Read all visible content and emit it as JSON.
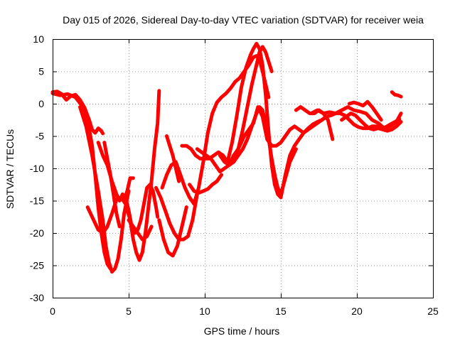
{
  "chart_data": {
    "type": "scatter",
    "title": "Day 015 of 2026, Sidereal Day-to-day VTEC variation (SDTVAR) for receiver weia",
    "xlabel": "GPS time / hours",
    "ylabel": "SDTVAR / TECUs",
    "xlim": [
      0,
      25
    ],
    "ylim": [
      -30,
      10
    ],
    "xticks": [
      0,
      5,
      10,
      15,
      20,
      25
    ],
    "yticks": [
      -30,
      -25,
      -20,
      -15,
      -10,
      -5,
      0,
      5,
      10
    ],
    "grid": true,
    "color": "#ff0000",
    "marker": "plus",
    "series": [
      {
        "x": [
          0.0,
          0.3,
          0.6,
          0.9,
          1.2,
          1.5,
          1.8,
          2.1,
          2.4,
          2.6,
          2.8,
          3.0,
          3.2,
          3.3
        ],
        "y": [
          1.8,
          1.9,
          1.5,
          0.6,
          1.2,
          1.4,
          0.6,
          -0.6,
          -2.5,
          -4.0,
          -4.5,
          -3.8,
          -4.2,
          -4.6
        ]
      },
      {
        "x": [
          0.0,
          0.5,
          1.0,
          1.5,
          2.0,
          2.3,
          2.6,
          2.8,
          3.0,
          3.2,
          3.4,
          3.6,
          3.8
        ],
        "y": [
          1.6,
          1.3,
          1.5,
          1.0,
          -0.5,
          -2.5,
          -6.5,
          -11.0,
          -16.0,
          -20.0,
          -23.0,
          -24.8,
          -25.5
        ]
      },
      {
        "x": [
          1.8,
          2.2,
          2.6,
          3.0,
          3.3,
          3.5,
          3.7,
          3.9,
          4.1,
          4.3,
          4.5,
          4.7,
          5.0
        ],
        "y": [
          -0.5,
          -3.5,
          -8.0,
          -13.5,
          -18.0,
          -22.0,
          -24.5,
          -26.0,
          -25.5,
          -24.0,
          -21.0,
          -17.0,
          -13.5
        ]
      },
      {
        "x": [
          2.3,
          2.6,
          3.0,
          3.3,
          3.6,
          3.9,
          4.2,
          4.5,
          4.8,
          5.1,
          5.3,
          5.5,
          5.7,
          5.9,
          6.1,
          6.3,
          6.5,
          6.7,
          6.9,
          7.0
        ],
        "y": [
          -16.0,
          -17.5,
          -19.5,
          -20.0,
          -19.0,
          -17.0,
          -14.8,
          -14.5,
          -15.5,
          -18.0,
          -21.0,
          -23.0,
          -24.2,
          -23.0,
          -20.0,
          -16.0,
          -12.0,
          -7.0,
          -3.0,
          2.0
        ]
      },
      {
        "x": [
          3.0,
          3.3,
          3.6,
          3.9,
          4.2,
          4.4,
          4.6,
          4.8,
          5.0,
          5.2,
          5.4,
          5.6,
          5.8,
          6.0,
          6.2,
          6.4,
          6.6,
          6.8,
          6.9
        ],
        "y": [
          -6.0,
          -8.0,
          -9.5,
          -12.0,
          -14.0,
          -15.0,
          -14.0,
          -14.5,
          -16.5,
          -19.0,
          -20.0,
          -19.5,
          -18.0,
          -15.5,
          -13.0,
          -12.5,
          -13.5,
          -16.0,
          -17.5
        ]
      },
      {
        "x": [
          3.4,
          3.6,
          3.8,
          4.0,
          4.2,
          4.4
        ],
        "y": [
          -6.0,
          -8.5,
          -11.0,
          -14.0,
          -17.0,
          -19.0
        ]
      },
      {
        "x": [
          4.5,
          4.7,
          4.9,
          5.1,
          5.3
        ],
        "y": [
          -14.5,
          -15.0,
          -13.5,
          -11.5,
          -11.5
        ]
      },
      {
        "x": [
          5.0,
          5.3,
          5.6,
          5.9,
          6.2,
          6.5
        ],
        "y": [
          -18.0,
          -19.0,
          -20.0,
          -21.0,
          -20.5,
          -19.0
        ]
      },
      {
        "x": [
          6.8,
          7.1,
          7.4,
          7.7,
          8.0,
          8.3,
          8.6,
          8.9,
          9.2,
          9.5
        ],
        "y": [
          -13.0,
          -14.5,
          -16.5,
          -18.5,
          -20.0,
          -21.0,
          -21.0,
          -20.5,
          -18.0,
          -14.0
        ]
      },
      {
        "x": [
          7.0,
          7.3,
          7.6,
          7.9,
          8.2,
          8.5,
          8.8
        ],
        "y": [
          -18.0,
          -21.0,
          -23.0,
          -23.5,
          -22.0,
          -19.0,
          -16.0
        ]
      },
      {
        "x": [
          7.5,
          7.7,
          7.9,
          8.1,
          8.3
        ],
        "y": [
          -5.0,
          -6.5,
          -8.0,
          -10.0,
          -12.0
        ]
      },
      {
        "x": [
          7.2,
          7.5,
          7.8,
          8.1,
          8.4,
          8.7,
          9.0,
          9.3,
          9.6,
          9.9,
          10.2,
          10.5,
          10.8,
          11.1,
          11.4,
          11.7,
          12.0,
          12.3,
          12.6,
          12.9,
          13.2,
          13.4,
          13.6,
          13.8,
          14.0,
          14.2
        ],
        "y": [
          -13.0,
          -11.0,
          -9.5,
          -9.0,
          -11.0,
          -13.0,
          -14.5,
          -15.5,
          -13.0,
          -9.0,
          -4.5,
          -1.5,
          0.2,
          1.0,
          1.6,
          2.4,
          3.4,
          4.0,
          5.0,
          6.0,
          7.2,
          7.4,
          6.8,
          5.0,
          3.0,
          1.0
        ]
      },
      {
        "x": [
          8.5,
          8.8,
          9.1,
          9.4,
          9.7,
          10.0,
          10.3,
          10.6,
          10.9,
          11.2,
          11.5,
          11.8,
          12.1,
          12.4,
          12.7,
          13.0,
          13.2,
          13.4,
          13.6,
          13.8,
          14.0,
          14.2,
          14.4,
          14.6,
          14.8,
          15.0
        ],
        "y": [
          -6.5,
          -6.5,
          -7.0,
          -8.0,
          -8.5,
          -8.5,
          -8.5,
          -8.0,
          -7.5,
          -8.0,
          -9.0,
          -6.0,
          -2.0,
          2.5,
          5.5,
          7.5,
          8.5,
          9.3,
          8.5,
          6.0,
          1.5,
          -4.5,
          -9.5,
          -12.5,
          -14.0,
          -14.5
        ]
      },
      {
        "x": [
          9.5,
          9.8,
          10.1,
          10.4,
          10.7,
          11.0,
          11.3,
          11.6,
          11.9,
          12.2,
          12.5,
          12.8,
          13.1,
          13.4,
          13.6,
          13.8,
          14.0,
          14.2,
          14.4
        ],
        "y": [
          -7.0,
          -7.5,
          -8.0,
          -8.5,
          -9.5,
          -10.5,
          -10.0,
          -9.5,
          -8.0,
          -7.0,
          -4.0,
          -0.5,
          3.0,
          6.0,
          8.0,
          8.8,
          8.0,
          6.5,
          5.0
        ]
      },
      {
        "x": [
          9.0,
          9.3,
          9.6,
          9.9,
          10.2,
          10.5,
          10.8,
          11.1
        ],
        "y": [
          -12.5,
          -13.5,
          -13.8,
          -13.5,
          -13.2,
          -12.5,
          -12.0,
          -11.0
        ]
      },
      {
        "x": [
          11.0,
          11.3,
          11.6,
          11.9,
          12.2,
          12.5,
          12.8,
          13.1,
          13.4,
          13.6,
          13.8,
          14.0,
          14.2,
          14.4,
          14.6,
          14.8,
          15.0,
          15.3,
          15.6,
          16.0
        ],
        "y": [
          -8.0,
          -9.0,
          -9.5,
          -9.0,
          -8.0,
          -7.0,
          -5.5,
          -3.5,
          -1.5,
          -0.5,
          -1.0,
          -3.0,
          -5.5,
          -8.5,
          -11.0,
          -13.0,
          -14.0,
          -11.5,
          -9.0,
          -7.0
        ]
      },
      {
        "x": [
          12.0,
          12.3,
          12.6,
          12.9,
          13.2,
          13.5,
          13.8,
          14.1,
          14.4,
          14.7,
          15.0,
          15.3,
          15.6,
          15.9,
          16.2,
          16.5,
          16.8,
          17.1,
          17.4,
          17.7,
          18.0
        ],
        "y": [
          -8.0,
          -6.5,
          -5.0,
          -4.0,
          -3.0,
          -0.5,
          -2.0,
          -5.5,
          -6.5,
          -6.5,
          -6.0,
          -5.0,
          -4.0,
          -3.5,
          -4.0,
          -4.5,
          -4.0,
          -3.5,
          -3.0,
          -2.5,
          -2.0
        ]
      },
      {
        "x": [
          15.0,
          15.3,
          15.6,
          15.9,
          16.2,
          16.5,
          16.8,
          17.1,
          17.4,
          17.7,
          18.0,
          18.3,
          18.6,
          18.9,
          19.2,
          19.5,
          19.8,
          20.1,
          20.4,
          20.7,
          21.0,
          21.3,
          21.6,
          21.9,
          22.2,
          22.5,
          22.8
        ],
        "y": [
          -14.5,
          -11.0,
          -8.0,
          -6.5,
          -5.5,
          -4.5,
          -3.8,
          -3.2,
          -2.8,
          -2.5,
          -2.0,
          -1.8,
          -1.5,
          -1.5,
          -1.8,
          -2.5,
          -3.2,
          -3.6,
          -3.8,
          -3.8,
          -3.5,
          -3.5,
          -3.8,
          -3.6,
          -3.2,
          -2.8,
          -2.4
        ]
      },
      {
        "x": [
          16.0,
          16.3,
          16.6,
          16.9,
          17.2,
          17.5,
          17.8,
          18.1,
          18.4
        ],
        "y": [
          -1.0,
          -0.5,
          -1.0,
          -1.5,
          -1.5,
          -1.0,
          -1.5,
          -2.5,
          -5.5
        ]
      },
      {
        "x": [
          17.0,
          17.4,
          17.8,
          18.2,
          18.6,
          19.0,
          19.4,
          19.8,
          20.2,
          20.6,
          21.0,
          21.4,
          21.8,
          22.2,
          22.6,
          22.9
        ],
        "y": [
          -1.5,
          -1.0,
          -1.5,
          -1.3,
          -1.5,
          -1.0,
          -0.5,
          -1.0,
          -1.2,
          -1.5,
          -2.5,
          -3.0,
          -3.8,
          -3.5,
          -2.8,
          -1.5
        ]
      },
      {
        "x": [
          19.0,
          19.3,
          19.6,
          19.9,
          20.2,
          20.5,
          20.8,
          21.1,
          21.4,
          21.7,
          22.0,
          22.3,
          22.6,
          22.9
        ],
        "y": [
          -2.5,
          -2.0,
          -1.5,
          -1.8,
          -2.5,
          -3.2,
          -3.8,
          -4.0,
          -3.8,
          -4.0,
          -4.2,
          -4.0,
          -3.5,
          -2.8
        ]
      },
      {
        "x": [
          19.5,
          19.8,
          20.1,
          20.4,
          20.7,
          21.0,
          21.3,
          21.6
        ],
        "y": [
          0.0,
          0.2,
          0.0,
          -0.3,
          0.3,
          -0.5,
          -1.5,
          -2.5
        ]
      },
      {
        "x": [
          22.3,
          22.5,
          22.7,
          22.9
        ],
        "y": [
          1.8,
          1.4,
          1.3,
          1.1
        ]
      }
    ]
  }
}
